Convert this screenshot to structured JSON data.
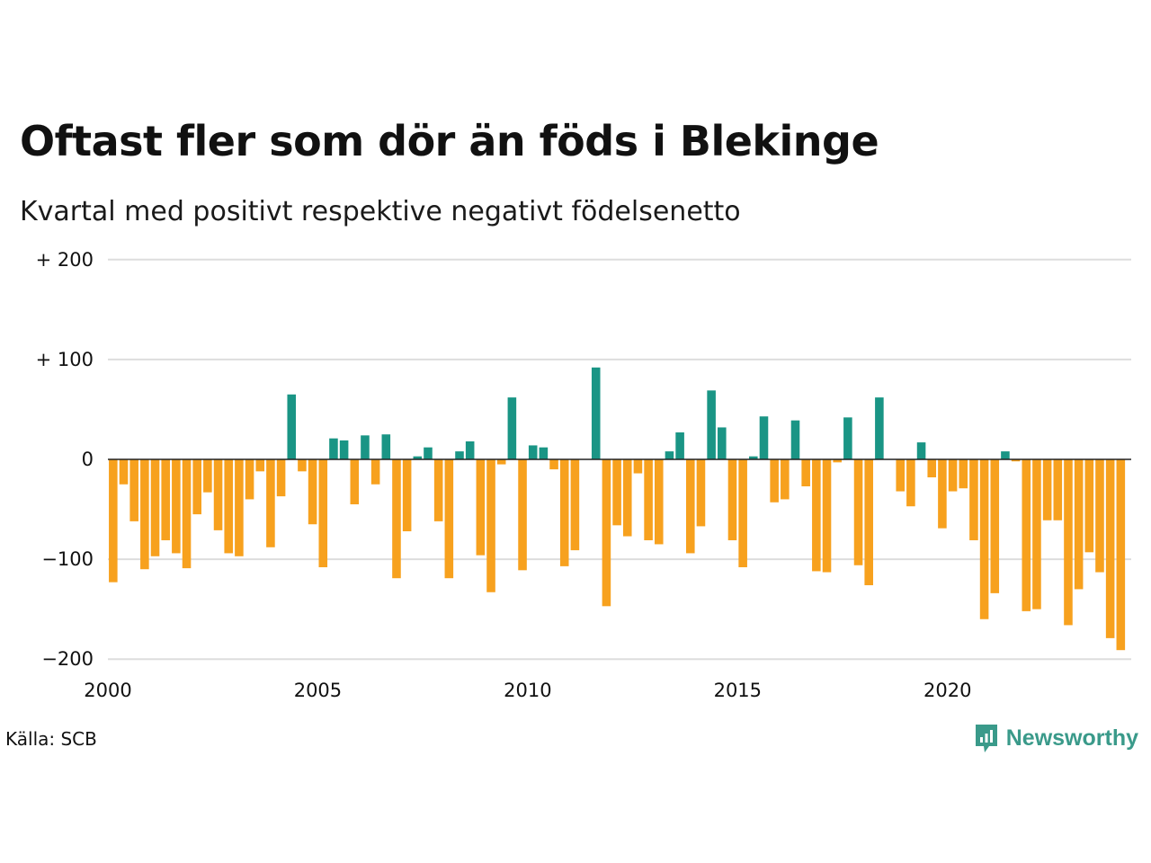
{
  "title": "Oftast fler som dör än föds i Blekinge",
  "subtitle": "Kvartal med positivt respektive negativt födelsenetto",
  "source": "Källa: SCB",
  "brand": "Newsworthy",
  "icons": {
    "logo": "newsworthy-chart-bubble-icon"
  },
  "colors": {
    "positive": "#1a9585",
    "negative": "#f7a11e",
    "grid": "#dddddd",
    "zero_line": "#222222"
  },
  "chart_data": {
    "type": "bar",
    "ylim": [
      -210,
      210
    ],
    "yticks": [
      200,
      100,
      0,
      -100,
      -200
    ],
    "ytick_labels": [
      "+ 200",
      "+ 100",
      "0",
      "−100",
      "−200"
    ],
    "xticks": [
      2000,
      2005,
      2010,
      2015,
      2020
    ],
    "xtick_labels": [
      "2000",
      "2005",
      "2010",
      "2015",
      "2020"
    ],
    "x_start": 2000,
    "periods_per_year": 4,
    "grid": true,
    "values": [
      -123,
      -25,
      -62,
      -110,
      -97,
      -81,
      -94,
      -109,
      -55,
      -33,
      -71,
      -94,
      -97,
      -40,
      -12,
      -88,
      -37,
      65,
      -12,
      -65,
      -108,
      21,
      19,
      -45,
      24,
      -25,
      25,
      -119,
      -72,
      3,
      12,
      -62,
      -119,
      8,
      18,
      -96,
      -133,
      -5,
      62,
      -111,
      14,
      12,
      -10,
      -107,
      -91,
      0,
      92,
      -147,
      -66,
      -77,
      -14,
      -81,
      -85,
      8,
      27,
      -94,
      -67,
      69,
      32,
      -81,
      -108,
      3,
      43,
      -43,
      -40,
      39,
      -27,
      -112,
      -113,
      -3,
      42,
      -106,
      -126,
      62,
      0,
      -32,
      -47,
      17,
      -18,
      -69,
      -32,
      -29,
      -81,
      -160,
      -134,
      8,
      -2,
      -152,
      -150,
      -61,
      -61,
      -166,
      -130,
      -93,
      -113,
      -179,
      -191
    ]
  }
}
